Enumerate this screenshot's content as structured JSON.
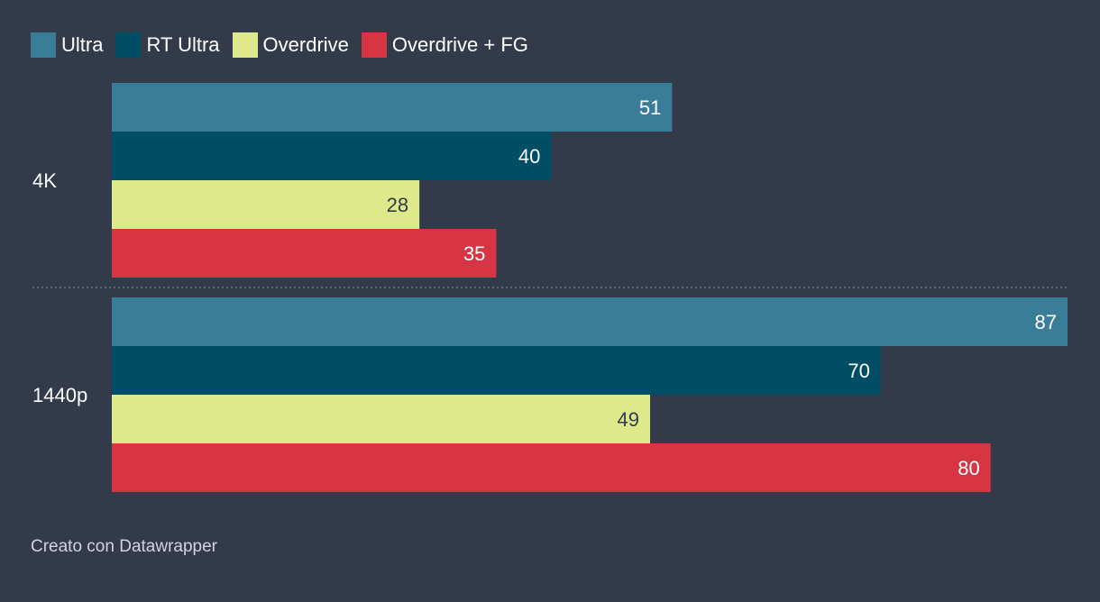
{
  "chart_data": {
    "type": "bar",
    "orientation": "horizontal",
    "categories": [
      "4K",
      "1440p"
    ],
    "series": [
      {
        "name": "Ultra",
        "color": "#3a7d98",
        "values": [
          51,
          87
        ]
      },
      {
        "name": "RT Ultra",
        "color": "#004e66",
        "values": [
          40,
          70
        ]
      },
      {
        "name": "Overdrive",
        "color": "#dde98a",
        "values": [
          28,
          49
        ]
      },
      {
        "name": "Overdrive + FG",
        "color": "#d73544",
        "values": [
          35,
          80
        ]
      }
    ],
    "xlim": [
      0,
      87
    ],
    "grid": false,
    "legend_position": "top-left",
    "value_label_colors": {
      "Ultra": "#ffffff",
      "RT Ultra": "#ffffff",
      "Overdrive": "#333b4b",
      "Overdrive + FG": "#ffffff"
    }
  },
  "footer": {
    "credit": "Creato con Datawrapper"
  },
  "colors": {
    "background": "#333b4b",
    "separator": "#6b7383"
  }
}
